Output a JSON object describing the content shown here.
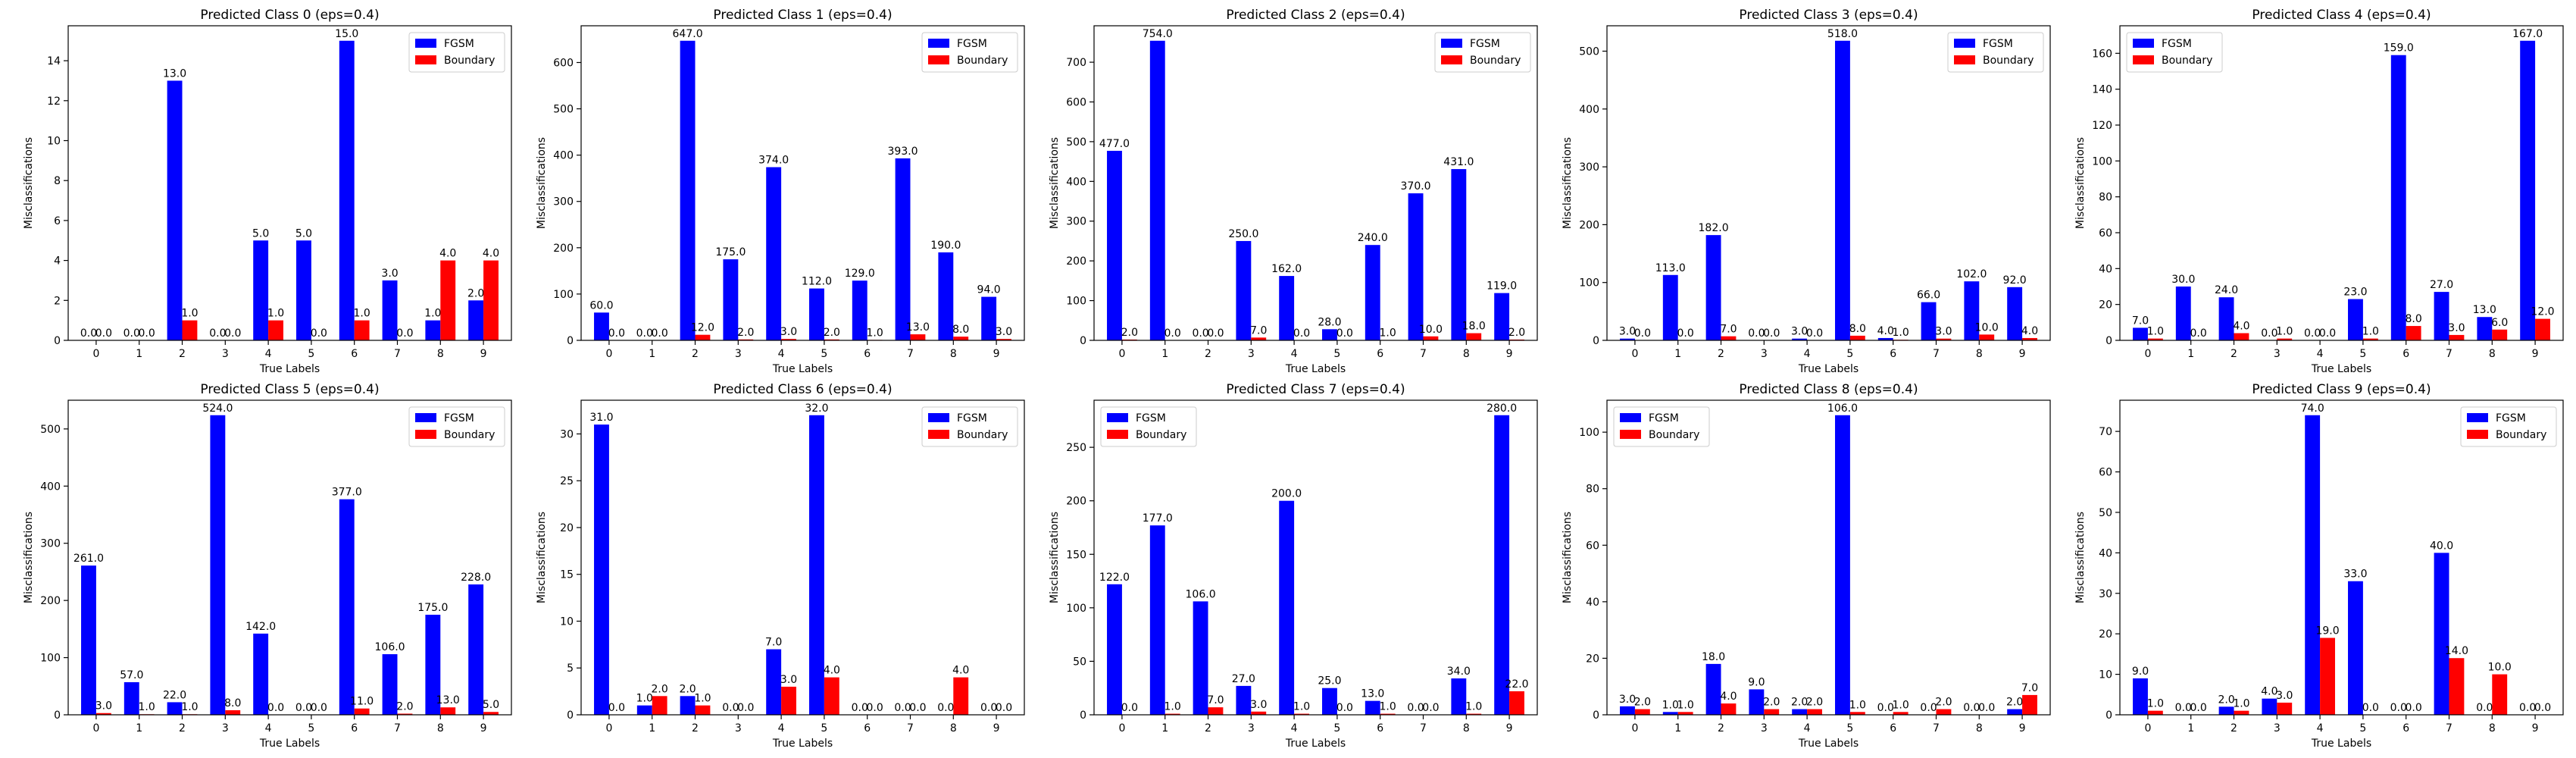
{
  "colors": {
    "fgsm": "#0000ff",
    "boundary": "#ff0000"
  },
  "axis_labels": {
    "x": "True Labels",
    "y": "Misclassifications"
  },
  "chart_data": [
    {
      "type": "bar",
      "title": "Predicted Class 0 (eps=0.4)",
      "categories": [
        "0",
        "1",
        "2",
        "3",
        "4",
        "5",
        "6",
        "7",
        "8",
        "9"
      ],
      "series": [
        {
          "name": "FGSM",
          "values": [
            0,
            0,
            13,
            0,
            5,
            5,
            15,
            3,
            1,
            2
          ]
        },
        {
          "name": "Boundary",
          "values": [
            0,
            0,
            1,
            0,
            1,
            0,
            1,
            0,
            4,
            4
          ]
        }
      ],
      "yticks": [
        0,
        2,
        4,
        6,
        8,
        10,
        12,
        14
      ],
      "ylim": [
        0,
        15.75
      ],
      "legend": "top-right",
      "xlabel": "True Labels",
      "ylabel": "Misclassifications"
    },
    {
      "type": "bar",
      "title": "Predicted Class 1 (eps=0.4)",
      "categories": [
        "0",
        "1",
        "2",
        "3",
        "4",
        "5",
        "6",
        "7",
        "8",
        "9"
      ],
      "series": [
        {
          "name": "FGSM",
          "values": [
            60,
            0,
            647,
            175,
            374,
            112,
            129,
            393,
            190,
            94
          ]
        },
        {
          "name": "Boundary",
          "values": [
            0,
            0,
            12,
            2,
            3,
            2,
            1,
            13,
            8,
            3
          ]
        }
      ],
      "yticks": [
        0,
        100,
        200,
        300,
        400,
        500,
        600
      ],
      "ylim": [
        0,
        679.35
      ],
      "legend": "top-right",
      "xlabel": "True Labels",
      "ylabel": "Misclassifications"
    },
    {
      "type": "bar",
      "title": "Predicted Class 2 (eps=0.4)",
      "categories": [
        "0",
        "1",
        "2",
        "3",
        "4",
        "5",
        "6",
        "7",
        "8",
        "9"
      ],
      "series": [
        {
          "name": "FGSM",
          "values": [
            477,
            754,
            0,
            250,
            162,
            28,
            240,
            370,
            431,
            119
          ]
        },
        {
          "name": "Boundary",
          "values": [
            2,
            0,
            0,
            7,
            0,
            0,
            1,
            10,
            18,
            2
          ]
        }
      ],
      "yticks": [
        0,
        100,
        200,
        300,
        400,
        500,
        600,
        700
      ],
      "ylim": [
        0,
        791.7
      ],
      "legend": "top-right",
      "xlabel": "True Labels",
      "ylabel": "Misclassifications"
    },
    {
      "type": "bar",
      "title": "Predicted Class 3 (eps=0.4)",
      "categories": [
        "0",
        "1",
        "2",
        "3",
        "4",
        "5",
        "6",
        "7",
        "8",
        "9"
      ],
      "series": [
        {
          "name": "FGSM",
          "values": [
            3,
            113,
            182,
            0,
            3,
            518,
            4,
            66,
            102,
            92
          ]
        },
        {
          "name": "Boundary",
          "values": [
            0,
            0,
            7,
            0,
            0,
            8,
            1,
            3,
            10,
            4
          ]
        }
      ],
      "yticks": [
        0,
        100,
        200,
        300,
        400,
        500
      ],
      "ylim": [
        0,
        543.9
      ],
      "legend": "top-right",
      "xlabel": "True Labels",
      "ylabel": "Misclassifications"
    },
    {
      "type": "bar",
      "title": "Predicted Class 4 (eps=0.4)",
      "categories": [
        "0",
        "1",
        "2",
        "3",
        "4",
        "5",
        "6",
        "7",
        "8",
        "9"
      ],
      "series": [
        {
          "name": "FGSM",
          "values": [
            7,
            30,
            24,
            0,
            0,
            23,
            159,
            27,
            13,
            167
          ]
        },
        {
          "name": "Boundary",
          "values": [
            1,
            0,
            4,
            1,
            0,
            1,
            8,
            3,
            6,
            12
          ]
        }
      ],
      "yticks": [
        0,
        20,
        40,
        60,
        80,
        100,
        120,
        140,
        160
      ],
      "ylim": [
        0,
        175.35
      ],
      "legend": "top-left",
      "xlabel": "True Labels",
      "ylabel": "Misclassifications"
    },
    {
      "type": "bar",
      "title": "Predicted Class 5 (eps=0.4)",
      "categories": [
        "0",
        "1",
        "2",
        "3",
        "4",
        "5",
        "6",
        "7",
        "8",
        "9"
      ],
      "series": [
        {
          "name": "FGSM",
          "values": [
            261,
            57,
            22,
            524,
            142,
            0,
            377,
            106,
            175,
            228
          ]
        },
        {
          "name": "Boundary",
          "values": [
            3,
            1,
            1,
            8,
            0,
            0,
            11,
            2,
            13,
            5
          ]
        }
      ],
      "yticks": [
        0,
        100,
        200,
        300,
        400,
        500
      ],
      "ylim": [
        0,
        550.2
      ],
      "legend": "top-right",
      "xlabel": "True Labels",
      "ylabel": "Misclassifications"
    },
    {
      "type": "bar",
      "title": "Predicted Class 6 (eps=0.4)",
      "categories": [
        "0",
        "1",
        "2",
        "3",
        "4",
        "5",
        "6",
        "7",
        "8",
        "9"
      ],
      "series": [
        {
          "name": "FGSM",
          "values": [
            31,
            1,
            2,
            0,
            7,
            32,
            0,
            0,
            0,
            0
          ]
        },
        {
          "name": "Boundary",
          "values": [
            0,
            2,
            1,
            0,
            3,
            4,
            0,
            0,
            4,
            0
          ]
        }
      ],
      "yticks": [
        0,
        5,
        10,
        15,
        20,
        25,
        30
      ],
      "ylim": [
        0,
        33.6
      ],
      "legend": "top-right",
      "xlabel": "True Labels",
      "ylabel": "Misclassifications"
    },
    {
      "type": "bar",
      "title": "Predicted Class 7 (eps=0.4)",
      "categories": [
        "0",
        "1",
        "2",
        "3",
        "4",
        "5",
        "6",
        "7",
        "8",
        "9"
      ],
      "series": [
        {
          "name": "FGSM",
          "values": [
            122,
            177,
            106,
            27,
            200,
            25,
            13,
            0,
            34,
            280
          ]
        },
        {
          "name": "Boundary",
          "values": [
            0,
            1,
            7,
            3,
            1,
            0,
            1,
            0,
            1,
            22
          ]
        }
      ],
      "yticks": [
        0,
        50,
        100,
        150,
        200,
        250
      ],
      "ylim": [
        0,
        294
      ],
      "legend": "top-left",
      "xlabel": "True Labels",
      "ylabel": "Misclassifications"
    },
    {
      "type": "bar",
      "title": "Predicted Class 8 (eps=0.4)",
      "categories": [
        "0",
        "1",
        "2",
        "3",
        "4",
        "5",
        "6",
        "7",
        "8",
        "9"
      ],
      "series": [
        {
          "name": "FGSM",
          "values": [
            3,
            1,
            18,
            9,
            2,
            106,
            0,
            0,
            0,
            2
          ]
        },
        {
          "name": "Boundary",
          "values": [
            2,
            1,
            4,
            2,
            2,
            1,
            1,
            2,
            0,
            7
          ]
        }
      ],
      "yticks": [
        0,
        20,
        40,
        60,
        80,
        100
      ],
      "ylim": [
        0,
        111.3
      ],
      "legend": "top-left",
      "xlabel": "True Labels",
      "ylabel": "Misclassifications"
    },
    {
      "type": "bar",
      "title": "Predicted Class 9 (eps=0.4)",
      "categories": [
        "0",
        "1",
        "2",
        "3",
        "4",
        "5",
        "6",
        "7",
        "8",
        "9"
      ],
      "series": [
        {
          "name": "FGSM",
          "values": [
            9,
            0,
            2,
            4,
            74,
            33,
            0,
            40,
            0,
            0
          ]
        },
        {
          "name": "Boundary",
          "values": [
            1,
            0,
            1,
            3,
            19,
            0,
            0,
            14,
            10,
            0
          ]
        }
      ],
      "yticks": [
        0,
        10,
        20,
        30,
        40,
        50,
        60,
        70
      ],
      "ylim": [
        0,
        77.7
      ],
      "legend": "top-right",
      "xlabel": "True Labels",
      "ylabel": "Misclassifications"
    }
  ]
}
